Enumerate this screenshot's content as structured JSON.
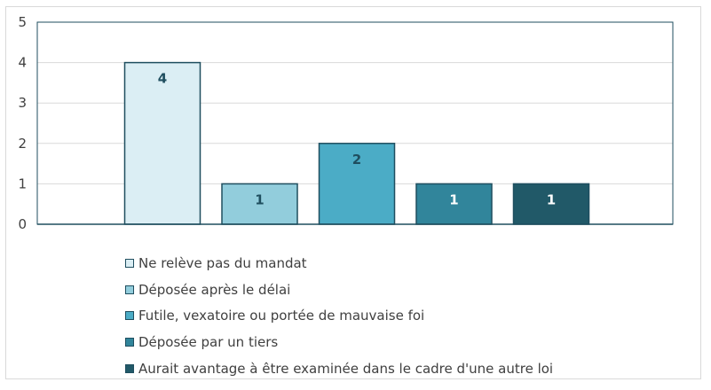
{
  "chart_data": {
    "type": "bar",
    "title": "",
    "xlabel": "",
    "ylabel": "",
    "ylim": [
      0,
      5
    ],
    "yticks": [
      0,
      1,
      2,
      3,
      4,
      5
    ],
    "grid": true,
    "legend_position": "bottom",
    "series": [
      {
        "name": "Ne relève pas du mandat",
        "value": 4,
        "color": "#dbeef4",
        "label_color": "#1f4e5f"
      },
      {
        "name": "Déposée après le délai",
        "value": 1,
        "color": "#92cddc",
        "label_color": "#1f4e5f"
      },
      {
        "name": "Futile, vexatoire ou portée de mauvaise foi",
        "value": 2,
        "color": "#4bacc6",
        "label_color": "#1f4e5f"
      },
      {
        "name": "Déposée par un tiers",
        "value": 1,
        "color": "#31859b",
        "label_color": "#ffffff"
      },
      {
        "name": "Aurait avantage à être examinée dans le cadre d'une autre loi",
        "value": 1,
        "color": "#215968",
        "label_color": "#ffffff"
      }
    ],
    "axis_color": "#1f4e5f",
    "gridline_color": "#d9d9d9",
    "border_color": "#1f4e5f"
  }
}
